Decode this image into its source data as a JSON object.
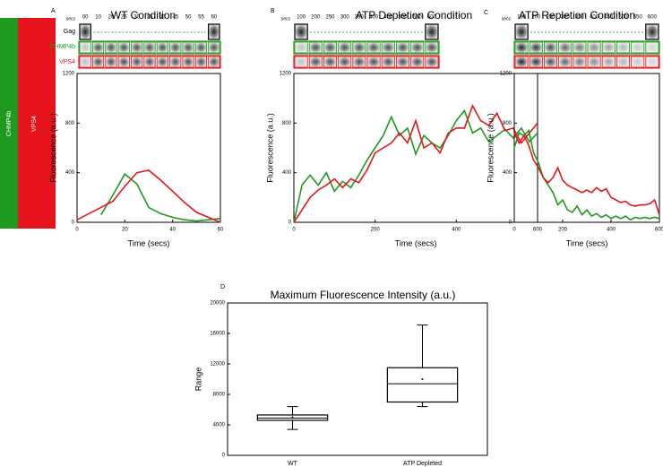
{
  "legend": [
    {
      "label": "CHMP4b",
      "color": "#1e9a1e"
    },
    {
      "label": "VPS4",
      "color": "#e8141c"
    }
  ],
  "chart_data": [
    {
      "type": "line",
      "panel_label": "A",
      "title": "WT Condition",
      "xlabel": "Time (secs)",
      "ylabel": "Fluorescence (a.u.)",
      "strip": {
        "unit": "secs",
        "times": [
          "00",
          "10",
          "20",
          "25",
          "30",
          "35",
          "40",
          "45",
          "50",
          "55",
          "60"
        ],
        "rows": [
          "Gag",
          "CHMP4b",
          "VPS4"
        ]
      },
      "x": [
        0,
        5,
        10,
        15,
        20,
        25,
        30,
        35,
        40,
        45,
        50,
        55,
        60
      ],
      "series": [
        {
          "color": "#1e9a1e",
          "values": [
            null,
            null,
            60,
            220,
            390,
            310,
            120,
            70,
            40,
            20,
            10,
            20,
            30
          ]
        },
        {
          "color": "#e8141c",
          "values": [
            20,
            70,
            120,
            170,
            290,
            400,
            420,
            340,
            250,
            160,
            80,
            40,
            0
          ]
        }
      ],
      "xlim": [
        0,
        60
      ],
      "xticks": [
        0,
        20,
        40,
        60
      ],
      "ylim": [
        0,
        1200
      ],
      "yticks": [
        0,
        400,
        800,
        1200
      ]
    },
    {
      "type": "line",
      "panel_label": "B",
      "title": "ATP Depletion Condition",
      "xlabel": "Time (secs)",
      "ylabel": "Fluorescence (a.u.)",
      "strip": {
        "unit": "secs",
        "times": [
          "100",
          "200",
          "250",
          "300",
          "350",
          "400",
          "450",
          "500",
          "550",
          "600"
        ]
      },
      "x": [
        0,
        20,
        40,
        60,
        80,
        100,
        120,
        140,
        160,
        180,
        200,
        220,
        240,
        260,
        280,
        300,
        320,
        340,
        360,
        380,
        400,
        420,
        440,
        460,
        480,
        500,
        520,
        540,
        560,
        580,
        600
      ],
      "series": [
        {
          "color": "#1e9a1e",
          "values": [
            0,
            300,
            380,
            300,
            400,
            250,
            330,
            280,
            380,
            500,
            600,
            700,
            850,
            700,
            760,
            550,
            700,
            640,
            600,
            700,
            820,
            900,
            720,
            760,
            650,
            700,
            750,
            680,
            760,
            650,
            720
          ]
        },
        {
          "color": "#e8141c",
          "values": [
            0,
            100,
            200,
            260,
            300,
            350,
            280,
            350,
            320,
            420,
            560,
            600,
            640,
            720,
            640,
            820,
            600,
            640,
            560,
            720,
            760,
            760,
            940,
            820,
            780,
            880,
            740,
            760,
            640,
            720,
            800
          ]
        }
      ],
      "xlim": [
        0,
        600
      ],
      "xticks": [
        0,
        200,
        400,
        600
      ],
      "ylim": [
        0,
        1200
      ],
      "yticks": [
        0,
        400,
        800,
        1200
      ]
    },
    {
      "type": "line",
      "panel_label": "C",
      "title": "ATP Repletion Condition",
      "xlabel": "Time (secs)",
      "ylabel": "Fluorescence (a.u.)",
      "strip": {
        "unit": "secs",
        "times": [
          "100",
          "200",
          "250",
          "300",
          "350",
          "400",
          "450",
          "500",
          "550",
          "600"
        ]
      },
      "x": [
        0,
        20,
        40,
        60,
        80,
        100,
        120,
        140,
        160,
        180,
        200,
        220,
        240,
        260,
        280,
        300,
        320,
        340,
        360,
        380,
        400,
        420,
        440,
        460,
        480,
        500,
        520,
        540,
        560,
        580,
        600
      ],
      "series": [
        {
          "color": "#1e9a1e",
          "values": [
            600,
            720,
            700,
            740,
            560,
            480,
            360,
            300,
            240,
            140,
            180,
            100,
            80,
            130,
            60,
            100,
            50,
            70,
            40,
            60,
            30,
            50,
            30,
            50,
            20,
            40,
            30,
            40,
            30,
            40,
            30
          ]
        },
        {
          "color": "#e8141c",
          "values": [
            720,
            640,
            700,
            620,
            500,
            440,
            360,
            320,
            360,
            440,
            340,
            300,
            280,
            260,
            240,
            260,
            240,
            280,
            250,
            270,
            200,
            180,
            160,
            170,
            140,
            130,
            140,
            140,
            150,
            180,
            60
          ]
        }
      ],
      "xlim": [
        0,
        600
      ],
      "xticks": [
        0,
        200,
        400,
        600
      ],
      "ylim": [
        0,
        1200
      ],
      "yticks": [
        0,
        400,
        800,
        1200
      ]
    },
    {
      "type": "box",
      "panel_label": "D",
      "title": "Maximum Fluorescence Intensity (a.u.)",
      "ylabel": "Range",
      "categories": [
        "WT",
        "ATP Depleted"
      ],
      "boxes": [
        {
          "min": 3400,
          "q1": 4600,
          "median": 4900,
          "q3": 5300,
          "max": 6400,
          "mean": 5000
        },
        {
          "min": 6400,
          "q1": 7000,
          "median": 9400,
          "q3": 11500,
          "max": 17100,
          "mean": 10000
        }
      ],
      "color": "#000000",
      "ylim": [
        0,
        20000
      ],
      "yticks": [
        0,
        4000,
        8000,
        12000,
        16000,
        20000
      ]
    }
  ]
}
